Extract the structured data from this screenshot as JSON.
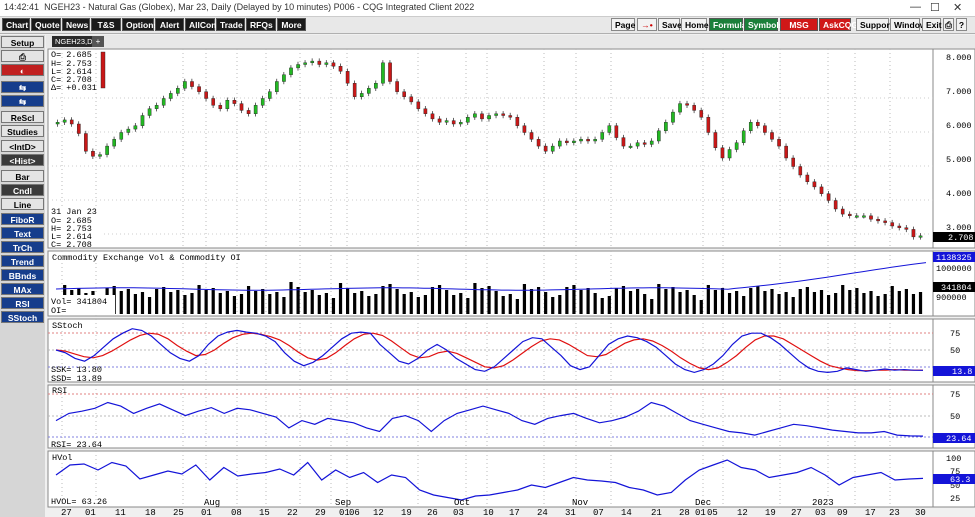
{
  "window": {
    "time": "14:42:41",
    "title": "NGEH23 - Natural Gas (Globex), Mar 23, Daily (Delayed by 10 minutes)  P006 - CQG Integrated Client 2022"
  },
  "menu": {
    "left": [
      "Chart",
      "Quote",
      "News",
      "T&S",
      "Options",
      "Alert",
      "AllCon",
      "Trade",
      "RFQs",
      "More"
    ],
    "right": [
      "Page",
      "→•",
      "Save",
      "Home",
      "Formula",
      "Symbols",
      "MSG Cntr",
      "AskCQG",
      "Support",
      "Window",
      "Exit"
    ]
  },
  "sidebar": [
    "Setup",
    "⎙",
    "◐",
    "⇆",
    "⇆",
    "ReScl",
    "Studies",
    "<IntD>",
    "<Hist>",
    "Bar",
    "Cndl",
    "Line",
    "FiboR",
    "Text",
    "TrCh",
    "Trend",
    "BBnds",
    "MAx",
    "RSI",
    "SStoch"
  ],
  "tab": {
    "symbol": "NGEH23,D",
    "plus": "+"
  },
  "ohlc_top": {
    "o": "O=   2.685",
    "h": "H=   2.753",
    "l": "L=   2.614",
    "c": "C=   2.708",
    "d": "Δ= +0.031"
  },
  "cursor_box": {
    "date": "31 Jan 23",
    "o": "O=   2.685",
    "h": "H=   2.753",
    "l": "L=   2.614",
    "c": "C=   2.708"
  },
  "price_axis": [
    "8.000",
    "7.000",
    "6.000",
    "5.000",
    "4.000",
    "3.000"
  ],
  "price_last": "2.708",
  "vol_panel": {
    "title": "Commodity Exchange Vol & Commodity OI",
    "vol": "Vol= 341804",
    "oi": "OI=",
    "axis": [
      "1000000",
      "900000"
    ],
    "oi_last": "1138325",
    "vol_last": "341804"
  },
  "sstoch_panel": {
    "title": "SStoch",
    "ssk": "SSK=   13.80",
    "ssd": "SSD=   13.89",
    "axis": [
      "75",
      "50",
      "25"
    ],
    "last": "13.8"
  },
  "rsi_panel": {
    "title": "RSI",
    "val": "RSI=  23.64",
    "axis": [
      "75",
      "50",
      "25"
    ],
    "last": "23.64"
  },
  "hvol_panel": {
    "title": "HVol",
    "val": "HVOL=   63.26",
    "axis": [
      "100",
      "75",
      "50",
      "25"
    ],
    "last": "63.3"
  },
  "x_days": [
    "27",
    "01",
    "11",
    "18",
    "25",
    "01",
    "08",
    "15",
    "22",
    "29",
    "01",
    "06",
    "12",
    "19",
    "26",
    "03",
    "10",
    "17",
    "24",
    "31",
    "07",
    "14",
    "21",
    "28",
    "01",
    "05",
    "12",
    "19",
    "27",
    "03",
    "09",
    "17",
    "23",
    "30"
  ],
  "x_months": [
    "Aug",
    "Sep",
    "Oct",
    "Nov",
    "Dec",
    "2023"
  ],
  "colors": {
    "up": "#22b822",
    "down": "#c81818",
    "blue": "#1414d8",
    "red": "#e01010"
  },
  "chart_data": {
    "type": "candlestick",
    "symbol": "NGEH23",
    "closes": [
      6.05,
      6.12,
      6.0,
      5.72,
      5.2,
      5.05,
      5.1,
      5.35,
      5.55,
      5.75,
      5.85,
      5.95,
      6.25,
      6.45,
      6.55,
      6.75,
      6.9,
      7.05,
      7.25,
      7.1,
      6.95,
      6.75,
      6.55,
      6.45,
      6.7,
      6.6,
      6.4,
      6.3,
      6.55,
      6.75,
      6.95,
      7.25,
      7.45,
      7.65,
      7.75,
      7.8,
      7.85,
      7.75,
      7.8,
      7.7,
      7.55,
      7.2,
      6.8,
      6.9,
      7.05,
      7.2,
      7.8,
      7.25,
      6.95,
      6.8,
      6.65,
      6.45,
      6.3,
      6.15,
      6.05,
      6.1,
      6.0,
      6.05,
      6.2,
      6.3,
      6.15,
      6.25,
      6.3,
      6.25,
      6.2,
      5.95,
      5.75,
      5.55,
      5.35,
      5.2,
      5.35,
      5.5,
      5.45,
      5.5,
      5.55,
      5.5,
      5.55,
      5.75,
      5.95,
      5.6,
      5.35,
      5.35,
      5.45,
      5.4,
      5.5,
      5.8,
      6.05,
      6.35,
      6.6,
      6.55,
      6.4,
      6.2,
      5.75,
      5.3,
      5.0,
      5.25,
      5.45,
      5.8,
      6.05,
      5.95,
      5.75,
      5.55,
      5.35,
      5.0,
      4.75,
      4.5,
      4.3,
      4.15,
      3.95,
      3.75,
      3.5,
      3.35,
      3.3,
      3.3,
      3.3,
      3.2,
      3.15,
      3.1,
      3.0,
      2.95,
      2.9,
      2.68,
      2.71
    ],
    "stoch_k": [
      50,
      45,
      35,
      30,
      40,
      55,
      70,
      80,
      88,
      85,
      75,
      60,
      45,
      35,
      30,
      40,
      60,
      75,
      82,
      85,
      82,
      80,
      75,
      65,
      45,
      30,
      22,
      28,
      40,
      55,
      70,
      80,
      82,
      80,
      60,
      45,
      30,
      25,
      35,
      50,
      60,
      50,
      35,
      25,
      15,
      12,
      20,
      35,
      50,
      65,
      72,
      70,
      55,
      40,
      22,
      15,
      20,
      40,
      60,
      70,
      75,
      72,
      65,
      55,
      40,
      25,
      15,
      10,
      15,
      25,
      40,
      60,
      75,
      80,
      80,
      72,
      60,
      45,
      30,
      18,
      12,
      10,
      12,
      18,
      15,
      12,
      14,
      16,
      14,
      15,
      14,
      13.8
    ],
    "stoch_d": [
      50,
      48,
      43,
      38,
      36,
      40,
      48,
      58,
      68,
      76,
      80,
      78,
      70,
      58,
      48,
      40,
      42,
      50,
      62,
      72,
      78,
      80,
      78,
      74,
      68,
      58,
      46,
      36,
      32,
      35,
      45,
      58,
      70,
      78,
      80,
      76,
      66,
      54,
      42,
      36,
      38,
      45,
      48,
      44,
      36,
      28,
      20,
      18,
      22,
      32,
      44,
      56,
      66,
      70,
      68,
      60,
      50,
      40,
      38,
      42,
      52,
      62,
      68,
      70,
      66,
      58,
      48,
      36,
      26,
      18,
      15,
      18,
      28,
      40,
      55,
      68,
      75,
      75,
      70,
      60,
      50,
      40,
      30,
      22,
      18,
      15,
      13,
      13,
      14,
      14,
      15,
      14,
      14,
      13.89
    ],
    "rsi": [
      45,
      55,
      58,
      62,
      70,
      65,
      55,
      62,
      68,
      60,
      52,
      58,
      63,
      55,
      62,
      60,
      55,
      50,
      35,
      45,
      40,
      48,
      45,
      42,
      35,
      30,
      48,
      52,
      45,
      30,
      45,
      55,
      60,
      65,
      60,
      55,
      45,
      40,
      48,
      52,
      55,
      48,
      42,
      45,
      50,
      58,
      70,
      65,
      55,
      45,
      40,
      35,
      30,
      28,
      25,
      30,
      35,
      40,
      38,
      35,
      32,
      30,
      28,
      28,
      30,
      25,
      24,
      23.64
    ],
    "hvol": [
      70,
      90,
      92,
      80,
      95,
      88,
      62,
      70,
      78,
      72,
      90,
      60,
      85,
      68,
      72,
      75,
      82,
      70,
      95,
      60,
      80,
      65,
      75,
      55,
      70,
      65,
      40,
      30,
      25,
      20,
      28,
      30,
      35,
      40,
      50,
      45,
      55,
      65,
      60,
      58,
      55,
      45,
      40,
      30,
      35,
      60,
      80,
      90,
      100,
      85,
      80,
      65,
      70,
      75,
      85,
      70,
      50,
      65,
      70,
      75,
      60,
      62,
      63.26
    ],
    "vol_last": 341804,
    "oi_last": 1138325
  }
}
